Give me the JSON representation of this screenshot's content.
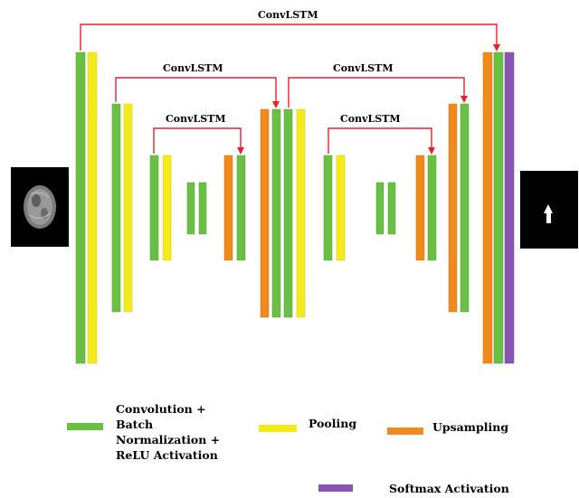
{
  "skip_connection_label": "ConvLSTM",
  "colors": {
    "convolution": "#6abf45",
    "pooling": "#f4ea1c",
    "upsampling": "#f08a1c",
    "softmax": "#8a55b0",
    "skip": "#e8202a"
  },
  "legend": {
    "convolution": "Convolution + Batch Normalization + ReLU Activation",
    "pooling": "Pooling",
    "upsampling": "Upsampling",
    "softmax": "Softmax Activation"
  }
}
